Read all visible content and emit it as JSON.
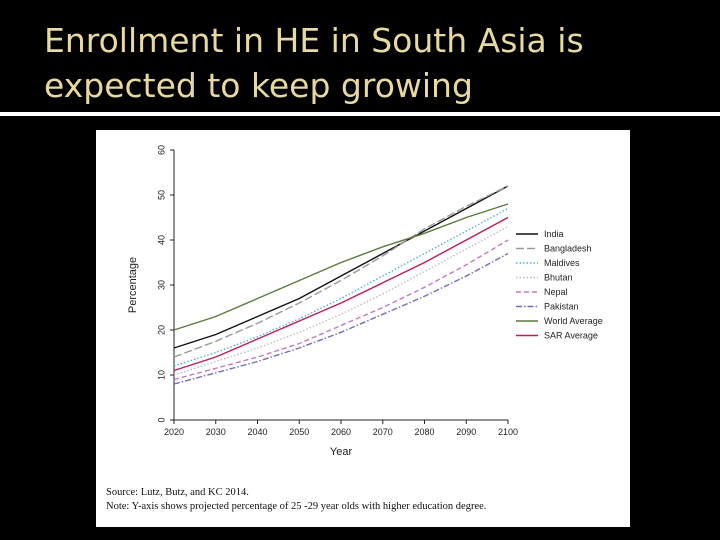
{
  "slide": {
    "title_line1": "Enrollment in HE in South Asia is",
    "title_line2": "expected to keep growing"
  },
  "caption": {
    "source": "Source: Lutz, Butz, and KC 2014.",
    "note": "Note: Y-axis shows projected percentage of 25 -29 year olds with higher education degree."
  },
  "colors": {
    "title": "#e8d9a0",
    "background": "#000000"
  },
  "chart_data": {
    "type": "line",
    "title": "",
    "xlabel": "Year",
    "ylabel": "Percentage",
    "xlim": [
      2020,
      2100
    ],
    "ylim": [
      0,
      60
    ],
    "x": [
      2020,
      2030,
      2040,
      2050,
      2060,
      2070,
      2080,
      2090,
      2100
    ],
    "xticks": [
      "2020",
      "2030",
      "2040",
      "2050",
      "2060",
      "2070",
      "2080",
      "2090",
      "2100"
    ],
    "yticks": [
      "0",
      "10",
      "20",
      "30",
      "40",
      "50",
      "60"
    ],
    "legend_position": "right",
    "grid": false,
    "series": [
      {
        "name": "India",
        "color": "#111111",
        "dash": "solid",
        "values": [
          16,
          19,
          23,
          27,
          32,
          37,
          42,
          47,
          52
        ]
      },
      {
        "name": "Bangladesh",
        "color": "#999999",
        "dash": "long-dash",
        "values": [
          14,
          17.5,
          21.5,
          26,
          31,
          36.5,
          42.5,
          47.5,
          52
        ]
      },
      {
        "name": "Maldives",
        "color": "#4fb3c4",
        "dash": "dotted",
        "values": [
          12,
          15,
          18.5,
          22.5,
          27,
          32,
          37,
          42,
          47
        ]
      },
      {
        "name": "Bhutan",
        "color": "#bdbdbd",
        "dash": "dotted",
        "values": [
          10,
          13,
          16,
          19.5,
          23.5,
          28,
          33,
          38,
          43
        ]
      },
      {
        "name": "Nepal",
        "color": "#c47ab8",
        "dash": "dash",
        "values": [
          9,
          11.5,
          14,
          17,
          21,
          25,
          29.5,
          34.5,
          40
        ]
      },
      {
        "name": "Pakistan",
        "color": "#7a6ab2",
        "dash": "dash-dot",
        "values": [
          8,
          10.5,
          13,
          16,
          19.5,
          23.5,
          27.5,
          32,
          37
        ]
      },
      {
        "name": "World Average",
        "color": "#5a7a3a",
        "dash": "solid",
        "values": [
          20,
          23,
          27,
          31,
          35,
          38.5,
          41.5,
          45,
          48
        ]
      },
      {
        "name": "SAR Average",
        "color": "#c2185b",
        "dash": "solid",
        "values": [
          11,
          14,
          18,
          22,
          26,
          30.5,
          35,
          40,
          45
        ]
      }
    ]
  }
}
